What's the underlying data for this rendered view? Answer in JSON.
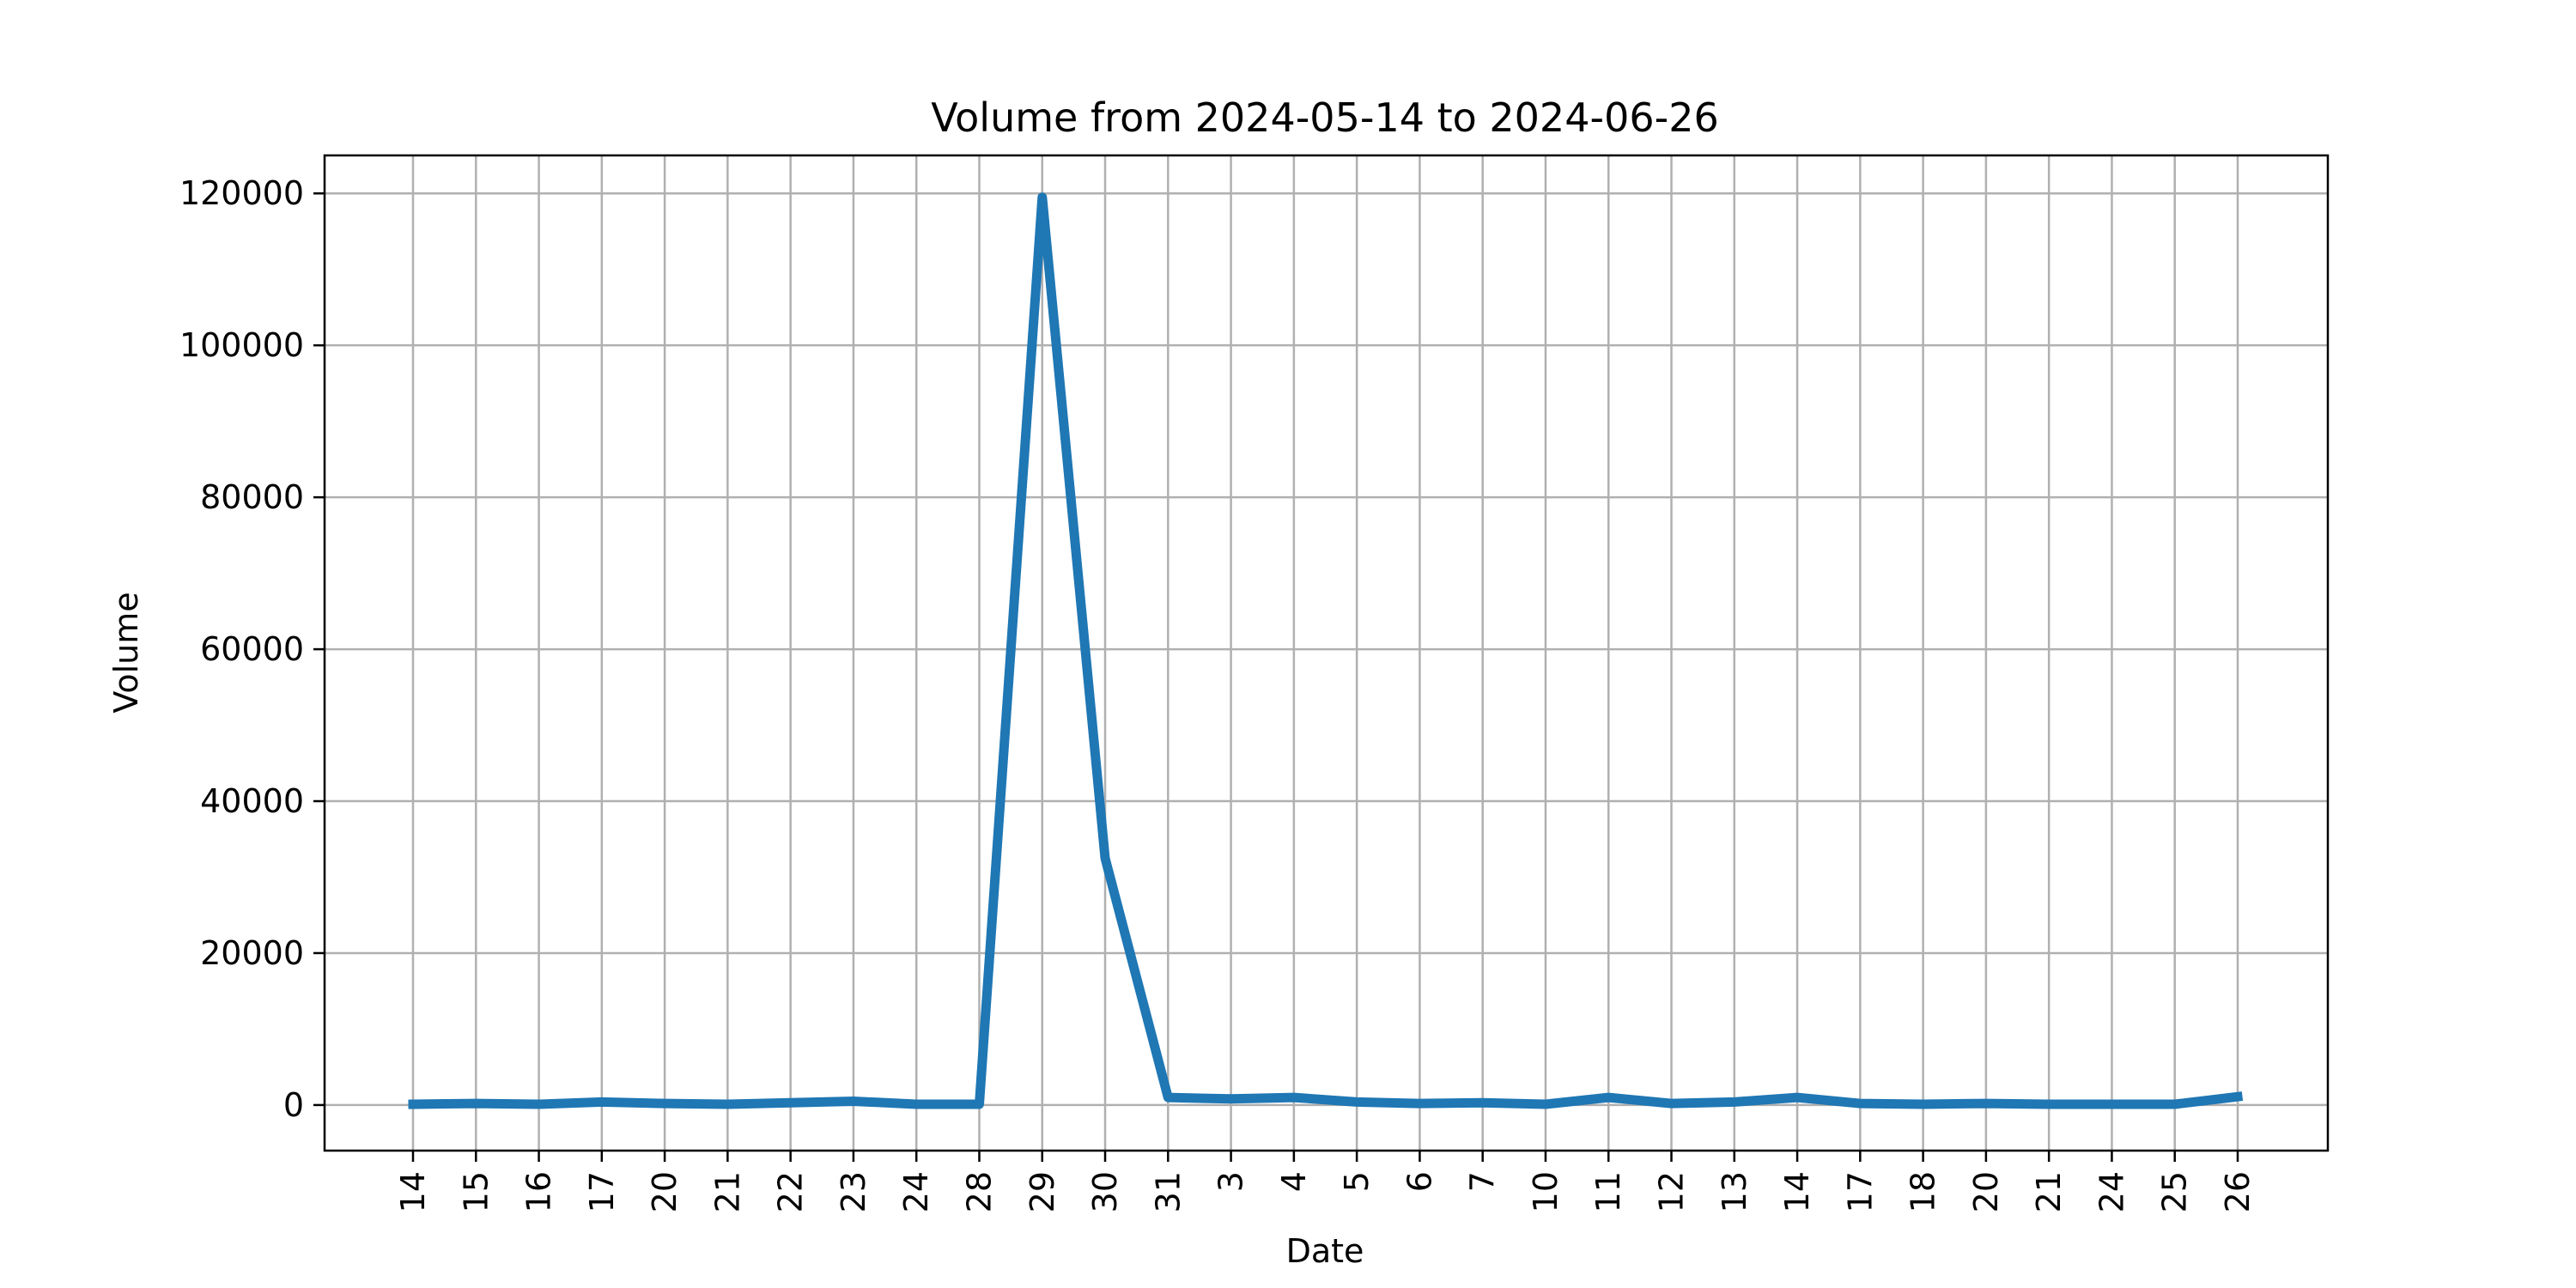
{
  "chart_data": {
    "type": "line",
    "title": "Volume from 2024-05-14 to 2024-06-26",
    "xlabel": "Date",
    "ylabel": "Volume",
    "x": [
      "2024-05-14",
      "2024-05-15",
      "2024-05-16",
      "2024-05-17",
      "2024-05-20",
      "2024-05-21",
      "2024-05-22",
      "2024-05-23",
      "2024-05-24",
      "2024-05-28",
      "2024-05-29",
      "2024-05-30",
      "2024-05-31",
      "2024-06-03",
      "2024-06-04",
      "2024-06-05",
      "2024-06-06",
      "2024-06-07",
      "2024-06-10",
      "2024-06-11",
      "2024-06-12",
      "2024-06-13",
      "2024-06-14",
      "2024-06-17",
      "2024-06-18",
      "2024-06-20",
      "2024-06-21",
      "2024-06-24",
      "2024-06-25",
      "2024-06-26"
    ],
    "tick_labels": [
      "14",
      "15",
      "16",
      "17",
      "20",
      "21",
      "22",
      "23",
      "24",
      "28",
      "29",
      "30",
      "31",
      "3",
      "4",
      "5",
      "6",
      "7",
      "10",
      "11",
      "12",
      "13",
      "14",
      "17",
      "18",
      "20",
      "21",
      "24",
      "25",
      "26"
    ],
    "series": [
      {
        "values": [
          100,
          200,
          100,
          400,
          200,
          100,
          300,
          500,
          100,
          100,
          119500,
          32500,
          1000,
          800,
          1000,
          400,
          200,
          300,
          100,
          1000,
          200,
          400,
          1000,
          200,
          100,
          200,
          100,
          100,
          100,
          1100
        ],
        "color": "#1f77b4"
      }
    ],
    "ylim": [
      -6000,
      125000
    ],
    "yticks": [
      0,
      20000,
      40000,
      60000,
      80000,
      100000,
      120000
    ],
    "grid": true
  }
}
